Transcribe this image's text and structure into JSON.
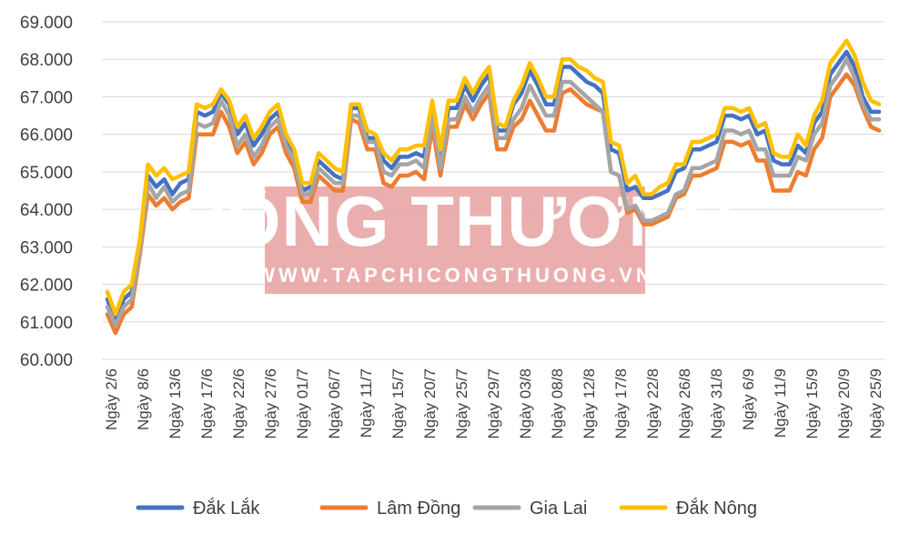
{
  "watermark": {
    "title": "CÔNG THƯƠNG",
    "url": "WWW.TAPCHICONGTHUONG.VN",
    "color": "#e8a0a0"
  },
  "chart_data": {
    "type": "line",
    "title": "",
    "xlabel": "",
    "ylabel": "",
    "ylim": [
      60000,
      69000
    ],
    "yticks": [
      "60.000",
      "61.000",
      "62.000",
      "63.000",
      "64.000",
      "65.000",
      "66.000",
      "67.000",
      "68.000",
      "69.000"
    ],
    "grid": true,
    "legend_position": "bottom",
    "x_tick_labels": [
      "Ngày 2/6",
      "Ngày 8/6",
      "Ngày 13/6",
      "Ngày 17/6",
      "Ngày 22/6",
      "Ngày 27/6",
      "Ngày 01/7",
      "Ngày 06/7",
      "Ngày 11/7",
      "Ngày 15/7",
      "Ngày 20/7",
      "Ngày 25/7",
      "Ngày 29/7",
      "Ngày 03/8",
      "Ngày 08/8",
      "Ngày 12/8",
      "Ngày 17/8",
      "Ngày 22/8",
      "Ngày 26/8",
      "Ngày 31/8",
      "Ngày 6/9",
      "Ngày 11/9",
      "Ngày 15/9",
      "Ngày 20/9",
      "Ngày 25/9"
    ],
    "series": [
      {
        "name": "Đắk Lắk",
        "color": "#4472c4",
        "values": [
          61600,
          61000,
          61600,
          61800,
          63000,
          64900,
          64600,
          64800,
          64400,
          64700,
          64800,
          66600,
          66500,
          66600,
          67100,
          66800,
          66000,
          66300,
          65700,
          66000,
          66400,
          66600,
          65800,
          65400,
          64500,
          64600,
          65300,
          65100,
          64900,
          64800,
          66700,
          66700,
          65900,
          65900,
          65300,
          65100,
          65400,
          65400,
          65500,
          65400,
          66800,
          65300,
          66700,
          66700,
          67300,
          66900,
          67300,
          67600,
          66100,
          66100,
          66800,
          67100,
          67700,
          67300,
          66800,
          66800,
          67800,
          67800,
          67600,
          67400,
          67300,
          67100,
          65600,
          65500,
          64500,
          64600,
          64300,
          64300,
          64400,
          64500,
          65000,
          65100,
          65600,
          65600,
          65700,
          65800,
          66500,
          66500,
          66400,
          66500,
          66000,
          66100,
          65300,
          65200,
          65200,
          65700,
          65500,
          66300,
          66600,
          67600,
          67900,
          68200,
          67800,
          67000,
          66600,
          66600
        ]
      },
      {
        "name": "Lâm Đồng",
        "color": "#ed7d31",
        "values": [
          61200,
          60700,
          61200,
          61400,
          62800,
          64400,
          64100,
          64300,
          64000,
          64200,
          64300,
          66000,
          66000,
          66000,
          66600,
          66200,
          65500,
          65800,
          65200,
          65500,
          66000,
          66200,
          65500,
          65100,
          64200,
          64200,
          64900,
          64700,
          64500,
          64500,
          66400,
          66300,
          65600,
          65600,
          64700,
          64600,
          64900,
          64900,
          65000,
          64800,
          66200,
          64900,
          66200,
          66200,
          66800,
          66400,
          66800,
          67100,
          65600,
          65600,
          66200,
          66400,
          66900,
          66500,
          66100,
          66100,
          67100,
          67200,
          67000,
          66800,
          66700,
          66600,
          65000,
          64900,
          63900,
          64000,
          63600,
          63600,
          63700,
          63800,
          64300,
          64400,
          64900,
          64900,
          65000,
          65100,
          65800,
          65800,
          65700,
          65800,
          65300,
          65300,
          64500,
          64500,
          64500,
          65000,
          64900,
          65600,
          65900,
          67000,
          67300,
          67600,
          67300,
          66700,
          66200,
          66100
        ]
      },
      {
        "name": "Gia Lai",
        "color": "#a5a5a5",
        "values": [
          61400,
          60900,
          61400,
          61600,
          62900,
          64700,
          64300,
          64600,
          64200,
          64400,
          64500,
          66300,
          66200,
          66300,
          66900,
          66500,
          65700,
          66000,
          65400,
          65700,
          66200,
          66400,
          65700,
          65300,
          64400,
          64400,
          65100,
          64900,
          64700,
          64700,
          66500,
          66500,
          65800,
          65800,
          65000,
          64900,
          65200,
          65200,
          65300,
          65100,
          66500,
          65100,
          66400,
          66400,
          67000,
          66600,
          67000,
          67300,
          65900,
          65900,
          66400,
          66700,
          67300,
          66900,
          66500,
          66500,
          67400,
          67400,
          67200,
          67000,
          66800,
          66600,
          65000,
          64900,
          64000,
          64100,
          63700,
          63700,
          63800,
          63900,
          64400,
          64500,
          65100,
          65100,
          65200,
          65300,
          66100,
          66100,
          66000,
          66100,
          65600,
          65600,
          64900,
          64900,
          64900,
          65400,
          65300,
          66000,
          66300,
          67300,
          67600,
          68000,
          67500,
          66800,
          66400,
          66400
        ]
      },
      {
        "name": "Đắk Nông",
        "color": "#ffc000",
        "values": [
          61800,
          61200,
          61800,
          62000,
          63200,
          65200,
          64900,
          65100,
          64800,
          64900,
          65000,
          66800,
          66700,
          66800,
          67200,
          66900,
          66200,
          66500,
          65900,
          66200,
          66600,
          66800,
          66000,
          65600,
          64700,
          64700,
          65500,
          65300,
          65100,
          65000,
          66800,
          66800,
          66100,
          66000,
          65500,
          65300,
          65600,
          65600,
          65700,
          65700,
          66900,
          65600,
          66900,
          66900,
          67500,
          67100,
          67500,
          67800,
          66300,
          66200,
          66900,
          67300,
          67900,
          67500,
          67000,
          67000,
          68000,
          68000,
          67800,
          67700,
          67500,
          67400,
          65800,
          65700,
          64700,
          64900,
          64400,
          64400,
          64600,
          64700,
          65200,
          65200,
          65800,
          65800,
          65900,
          66000,
          66700,
          66700,
          66600,
          66700,
          66200,
          66300,
          65500,
          65400,
          65400,
          66000,
          65700,
          66500,
          66900,
          67900,
          68200,
          68500,
          68100,
          67400,
          66900,
          66800
        ]
      }
    ]
  }
}
